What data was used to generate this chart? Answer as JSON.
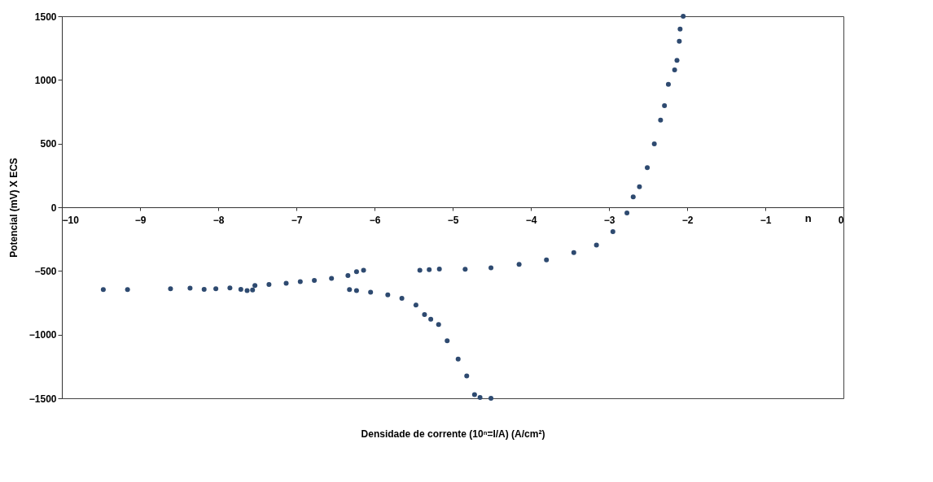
{
  "chart_data": {
    "type": "scatter",
    "xlabel": "Densidade de corrente (10ⁿ=I/A) (A/cm²)",
    "ylabel": "Potencial (mV) X ECS",
    "annotations": [
      "n"
    ],
    "xlim": [
      -10,
      0
    ],
    "xticks": [
      -10,
      -9,
      -8,
      -7,
      -6,
      -5,
      -4,
      -3,
      -2,
      -1,
      0
    ],
    "ylim": [
      -1500,
      1500
    ],
    "yticks": [
      -1500,
      -1000,
      -500,
      0,
      500,
      1000,
      1500
    ],
    "grid": false,
    "marker": "circle",
    "x": [
      -9.47,
      -9.16,
      -8.61,
      -8.36,
      -8.18,
      -8.03,
      -7.85,
      -7.71,
      -7.63,
      -7.56,
      -7.53,
      -7.35,
      -7.13,
      -6.95,
      -6.77,
      -6.55,
      -6.34,
      -6.23,
      -6.14,
      -5.42,
      -5.3,
      -5.17,
      -4.84,
      -4.51,
      -4.15,
      -3.8,
      -3.45,
      -3.16,
      -2.95,
      -2.77,
      -2.69,
      -2.61,
      -2.51,
      -2.42,
      -2.34,
      -2.29,
      -2.24,
      -2.16,
      -2.13,
      -2.1,
      -2.09,
      -2.05,
      -6.32,
      -6.23,
      -6.05,
      -5.83,
      -5.65,
      -5.47,
      -5.36,
      -5.28,
      -5.18,
      -5.07,
      -4.93,
      -4.82,
      -4.72,
      -4.65,
      -4.51
    ],
    "series": [
      {
        "color": "#2e4a70",
        "values": [
          -646,
          -646,
          -640,
          -635,
          -644,
          -640,
          -633,
          -644,
          -655,
          -650,
          -614,
          -607,
          -597,
          -584,
          -575,
          -558,
          -536,
          -506,
          -494,
          -495,
          -490,
          -485,
          -487,
          -476,
          -449,
          -413,
          -356,
          -297,
          -192,
          -45,
          82,
          161,
          311,
          498,
          685,
          798,
          966,
          1079,
          1153,
          1303,
          1399,
          1500,
          -646,
          -655,
          -667,
          -687,
          -715,
          -768,
          -843,
          -880,
          -920,
          -1049,
          -1192,
          -1324,
          -1472,
          -1494,
          -1500
        ]
      }
    ]
  }
}
